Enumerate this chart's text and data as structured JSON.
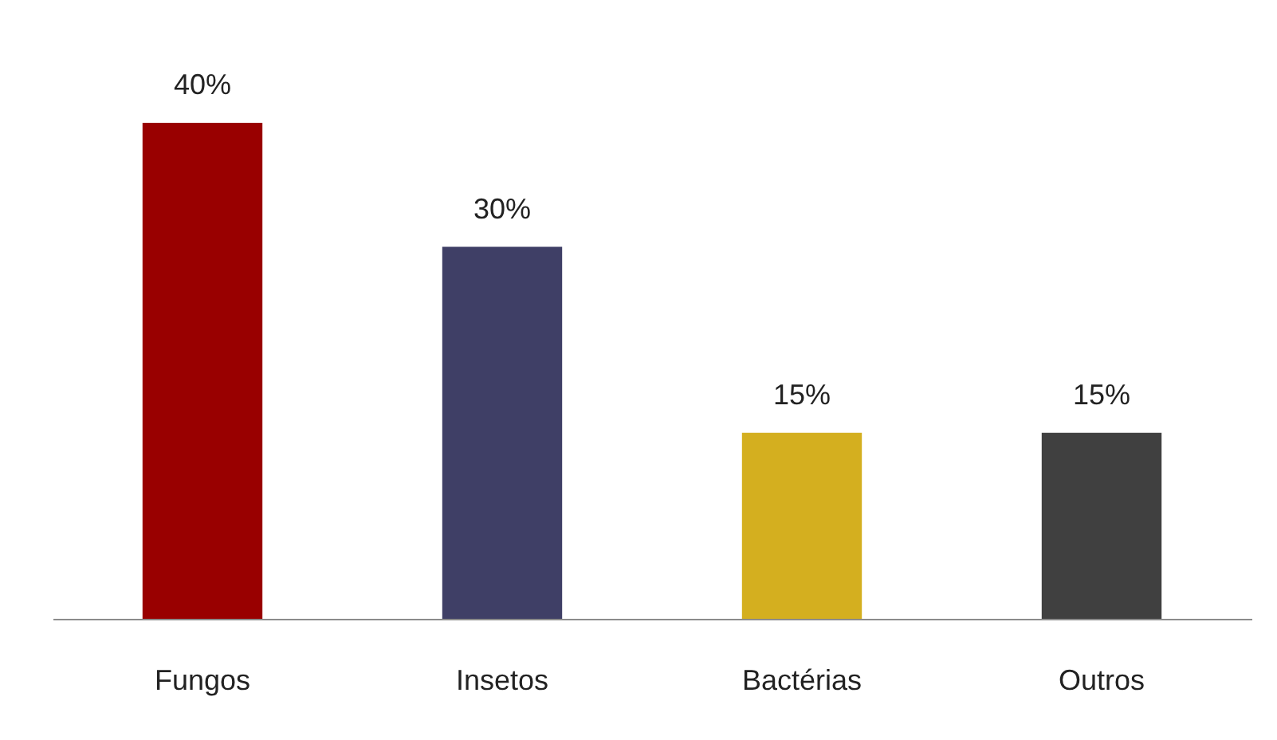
{
  "chart_data": {
    "type": "bar",
    "categories": [
      "Fungos",
      "Insetos",
      "Bactérias",
      "Outros"
    ],
    "values": [
      40,
      30,
      15,
      15
    ],
    "colors": [
      "#990000",
      "#3f3f66",
      "#d4af1f",
      "#404040"
    ],
    "value_labels": [
      "40%",
      "30%",
      "15%",
      "15%"
    ],
    "grid": false,
    "legend": false
  }
}
